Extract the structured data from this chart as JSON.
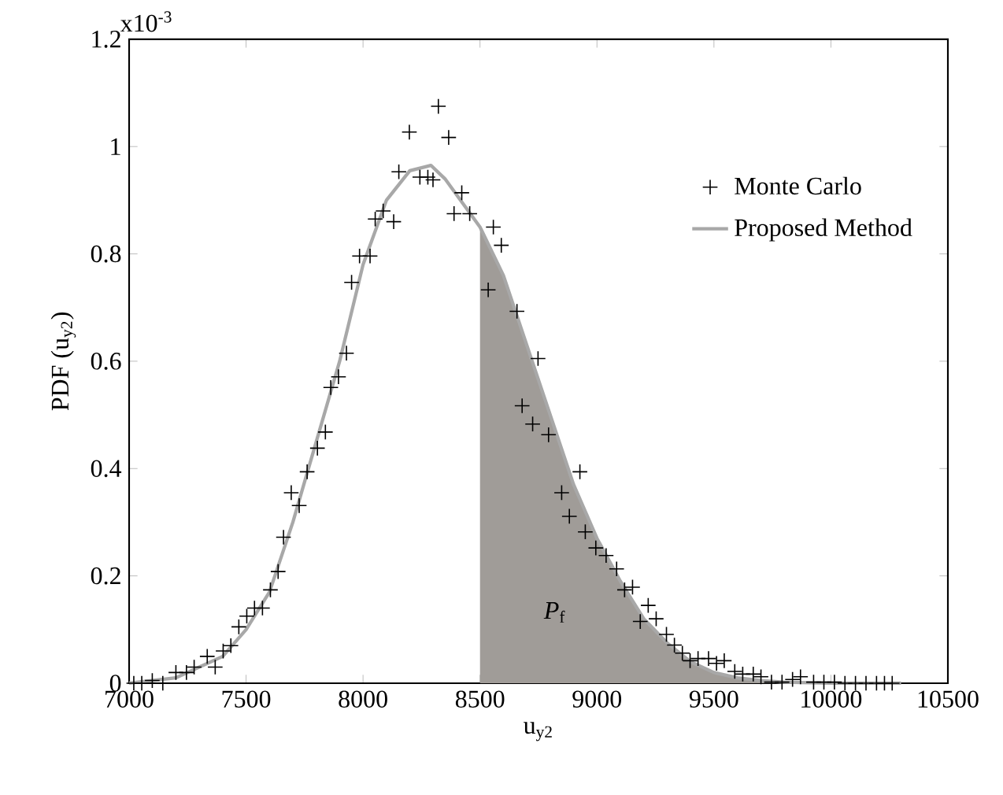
{
  "chart_data": {
    "type": "scatter",
    "xlabel": "u$_{y2}$",
    "ylabel": "PDF (u$_{y2}$)",
    "xlim": [
      7000,
      10500
    ],
    "xticks": [
      7000,
      7500,
      8000,
      8500,
      9000,
      9500,
      10000,
      10500
    ],
    "ylim": [
      0,
      1.2
    ],
    "yticks": [
      0,
      0.2,
      0.4,
      0.6,
      0.8,
      1,
      1.2
    ],
    "grid": false,
    "legend": "top right",
    "annotations": [
      "x10$^{-3}$",
      "*P*$_{f}$"
    ],
    "series": [
      {
        "type": "area",
        "color": "#a09c98",
        "x": [
          8500,
          8600,
          8700,
          8800,
          8900,
          9000,
          9100,
          9200,
          9300,
          9400,
          9500,
          9600,
          9700,
          9800,
          10000
        ],
        "values": [
          0.85,
          0.76,
          0.63,
          0.5,
          0.37,
          0.27,
          0.19,
          0.12,
          0.075,
          0.04,
          0.02,
          0.01,
          0.005,
          0.002,
          0
        ]
      },
      {
        "name": "Monte Carlo",
        "marker": "cross",
        "color": "#000000",
        "x": [
          7020,
          7054,
          7099,
          7144,
          7200,
          7245,
          7278,
          7334,
          7368,
          7402,
          7435,
          7469,
          7503,
          7536,
          7570,
          7604,
          7637,
          7660,
          7693,
          7727,
          7761,
          7805,
          7839,
          7862,
          7895,
          7929,
          7951,
          7985,
          8030,
          8052,
          8086,
          8131,
          8153,
          8198,
          8243,
          8277,
          8299,
          8322,
          8366,
          8389,
          8422,
          8456,
          8535,
          8557,
          8591,
          8658,
          8680,
          8725,
          8748,
          8793,
          8849,
          8882,
          8927,
          8950,
          8995,
          9039,
          9084,
          9118,
          9152,
          9185,
          9219,
          9253,
          9297,
          9331,
          9365,
          9398,
          9432,
          9477,
          9511,
          9544,
          9589,
          9623,
          9668,
          9701,
          9746,
          9791,
          9836,
          9870,
          9926,
          9970,
          10015,
          10060,
          10105,
          10150,
          10195,
          10229,
          10262
        ],
        "values": [
          0,
          0,
          0.005,
          0,
          0.02,
          0.02,
          0.03,
          0.05,
          0.03,
          0.06,
          0.07,
          0.105,
          0.125,
          0.14,
          0.14,
          0.174,
          0.208,
          0.272,
          0.355,
          0.331,
          0.394,
          0.438,
          0.468,
          0.551,
          0.571,
          0.615,
          0.747,
          0.796,
          0.796,
          0.865,
          0.88,
          0.86,
          0.953,
          1.027,
          0.943,
          0.943,
          0.938,
          1.075,
          1.017,
          0.875,
          0.914,
          0.875,
          0.733,
          0.85,
          0.816,
          0.693,
          0.517,
          0.483,
          0.605,
          0.463,
          0.355,
          0.311,
          0.394,
          0.282,
          0.252,
          0.238,
          0.213,
          0.174,
          0.179,
          0.115,
          0.145,
          0.12,
          0.091,
          0.071,
          0.056,
          0.042,
          0.046,
          0.046,
          0.037,
          0.042,
          0.022,
          0.017,
          0.017,
          0.012,
          0.002,
          0.002,
          0.007,
          0.012,
          0.002,
          0.002,
          0.002,
          0,
          0,
          0,
          0,
          0,
          0
        ]
      },
      {
        "type": "line",
        "name": "Proposed Method",
        "color": "#a8a8a8",
        "x": [
          7000,
          7200,
          7400,
          7500,
          7600,
          7700,
          7800,
          7900,
          8000,
          8100,
          8200,
          8290,
          8350,
          8450,
          8500,
          8600,
          8700,
          8800,
          8900,
          9000,
          9100,
          9200,
          9300,
          9400,
          9500,
          9600,
          9700,
          9800,
          10000,
          10300
        ],
        "values": [
          0,
          0.01,
          0.05,
          0.1,
          0.17,
          0.3,
          0.45,
          0.6,
          0.78,
          0.9,
          0.955,
          0.965,
          0.94,
          0.88,
          0.85,
          0.76,
          0.63,
          0.5,
          0.37,
          0.27,
          0.19,
          0.12,
          0.075,
          0.04,
          0.02,
          0.01,
          0.005,
          0.002,
          0,
          0
        ]
      }
    ]
  }
}
